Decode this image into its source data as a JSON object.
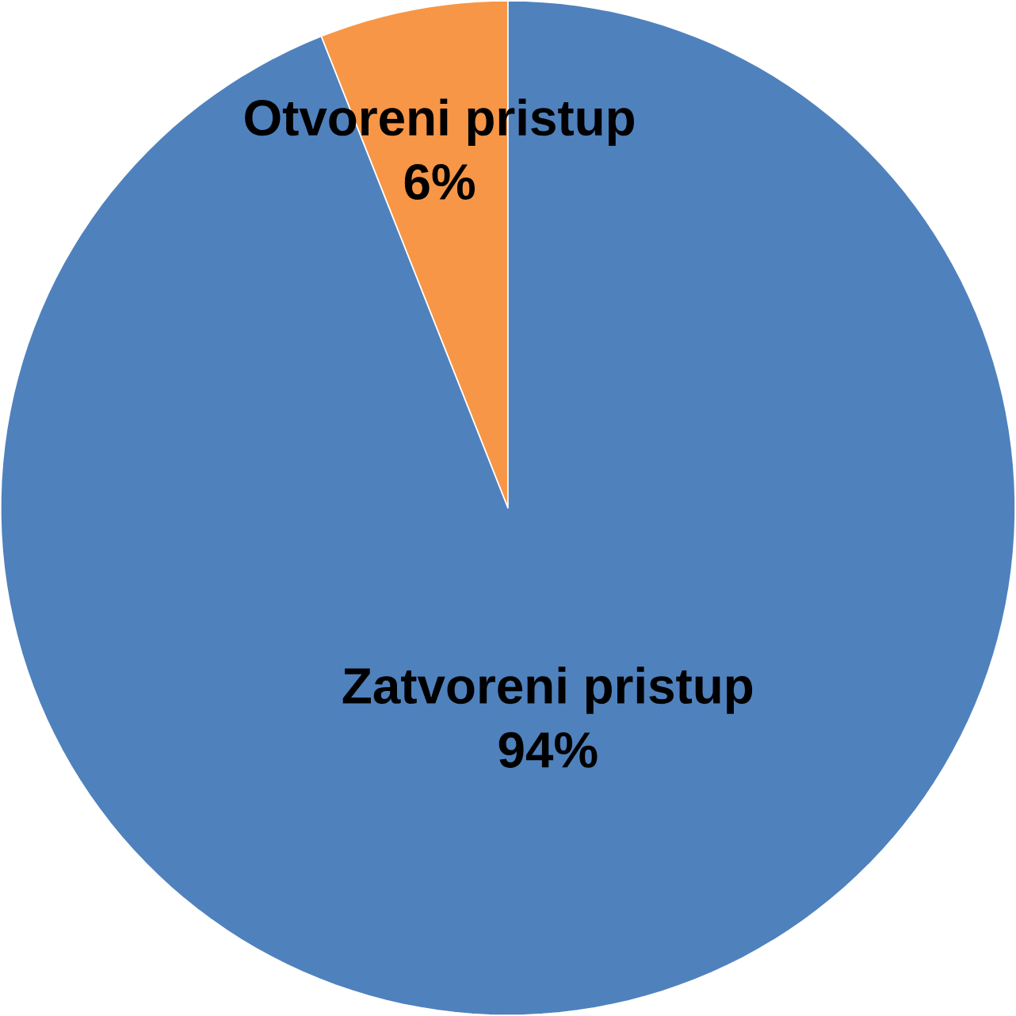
{
  "chart_data": {
    "type": "pie",
    "categories": [
      "Otvoreni pristup",
      "Zatvoreni pristup"
    ],
    "values": [
      6,
      94
    ],
    "value_labels": [
      "6%",
      "94%"
    ],
    "colors": [
      "#f79646",
      "#4f81bd"
    ]
  }
}
